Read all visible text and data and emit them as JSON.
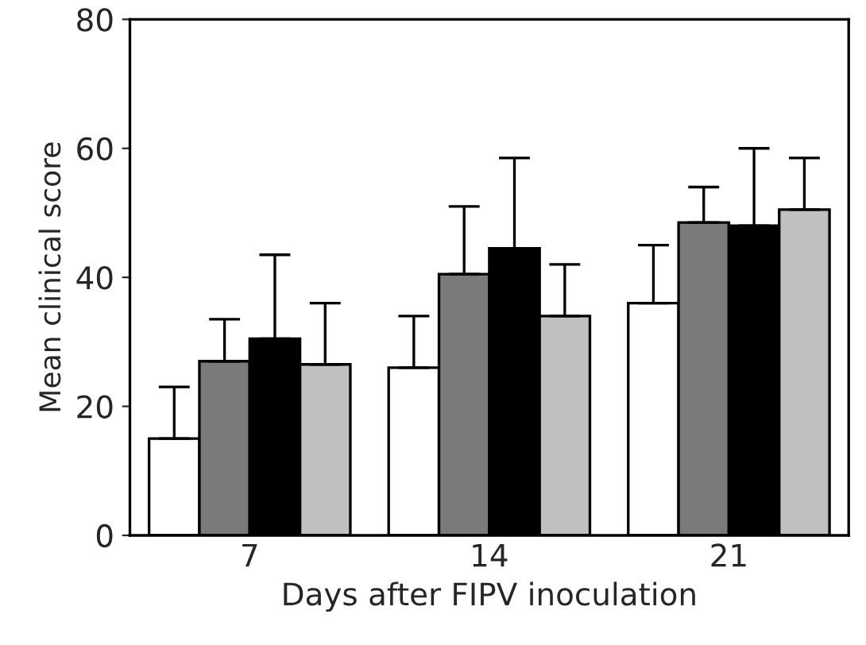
{
  "chart_data": {
    "type": "bar",
    "xlabel": "Days after FIPV inoculation",
    "ylabel": "Mean clinical score",
    "categories": [
      "7",
      "14",
      "21"
    ],
    "series": [
      {
        "color": "#ffffff",
        "values": [
          15,
          26,
          36
        ],
        "errors": [
          [
            15,
            23
          ],
          [
            26,
            34
          ],
          [
            36,
            45
          ]
        ]
      },
      {
        "color": "#7a7a7a",
        "values": [
          27,
          40.5,
          48.5
        ],
        "errors": [
          [
            27,
            33.5
          ],
          [
            40.5,
            51
          ],
          [
            48.5,
            54
          ]
        ]
      },
      {
        "color": "#000000",
        "values": [
          30.5,
          44.5,
          48
        ],
        "errors": [
          [
            30.5,
            43.5
          ],
          [
            44.5,
            58.5
          ],
          [
            48,
            60
          ]
        ]
      },
      {
        "color": "#c0c0c0",
        "values": [
          26.5,
          34,
          50.5
        ],
        "errors": [
          [
            26.5,
            36
          ],
          [
            34,
            42
          ],
          [
            50.5,
            58.5
          ]
        ]
      }
    ],
    "ylim": [
      0,
      80
    ],
    "yticks": [
      0,
      20,
      40,
      60,
      80
    ],
    "grid": false,
    "legend": false
  }
}
